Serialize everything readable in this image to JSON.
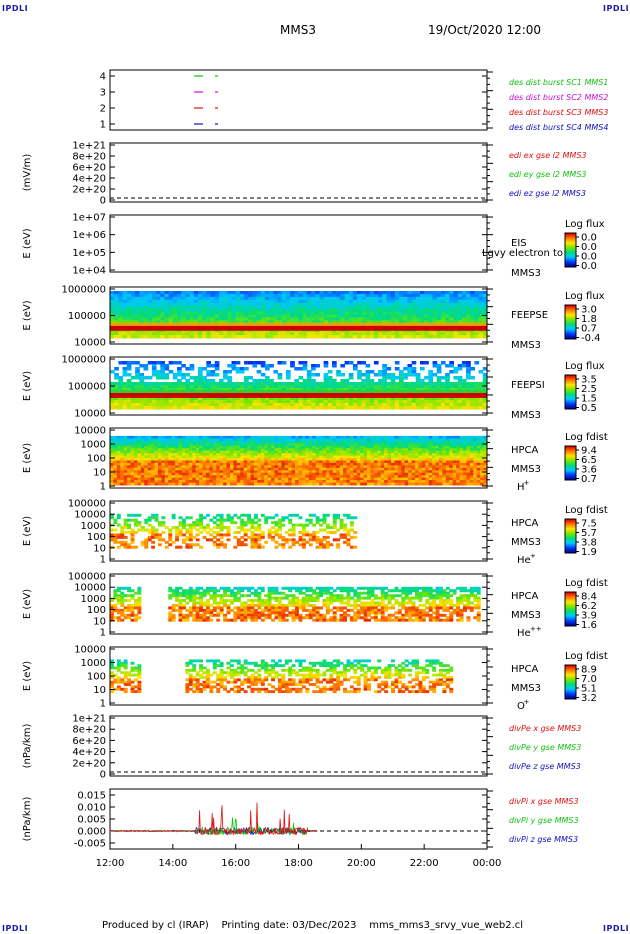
{
  "corners": {
    "tl": "IPDLI",
    "tr": "IPDLI",
    "bl": "IPDLI",
    "br": "IPDLI"
  },
  "header": {
    "spacecraft": "MMS3",
    "datetime": "19/Oct/2020 12:00"
  },
  "footer": {
    "text": "Produced by cl (IRAP)    Printing date: 03/Dec/2023    mms_mms3_srvy_vue_web2.cl"
  },
  "colors": {
    "red": "#e01010",
    "green": "#10c010",
    "blue": "#1010c0",
    "magenta": "#d010d0"
  },
  "chart_data": [
    {
      "id": "burst",
      "type": "line",
      "ylabel": "",
      "ticks": [
        "1",
        "2",
        "3",
        "4"
      ],
      "x_ticks": [
        "12:00",
        "14:00",
        "16:00",
        "18:00",
        "20:00",
        "22:00",
        "00:00"
      ],
      "series": [
        {
          "name": "des dist burst SC1 MMS1",
          "color": "#10c010",
          "level": 4,
          "x": [
            "14:45",
            "15:10"
          ]
        },
        {
          "name": "des dist burst SC2 MMS2",
          "color": "#d010d0",
          "level": 3,
          "x": [
            "14:45",
            "15:10"
          ]
        },
        {
          "name": "des dist burst SC3 MMS3",
          "color": "#e01010",
          "level": 2,
          "x": [
            "14:45",
            "15:10"
          ]
        },
        {
          "name": "des dist burst SC4 MMS4",
          "color": "#1010c0",
          "level": 1,
          "x": [
            "14:45",
            "15:10"
          ]
        }
      ]
    },
    {
      "id": "edi",
      "type": "line",
      "ylabel": "(mV/m)",
      "ticks": [
        "1e+21",
        "8e+20",
        "6e+20",
        "4e+20",
        "2e+20",
        "0"
      ],
      "series": [
        {
          "name": "edi ex gse l2 MMS3",
          "color": "#e01010"
        },
        {
          "name": "edi ey gse l2 MMS3",
          "color": "#10c010"
        },
        {
          "name": "edi ez gse l2 MMS3",
          "color": "#1010c0"
        }
      ]
    },
    {
      "id": "eis",
      "type": "heatmap",
      "ylabel": "E (eV)",
      "ticks": [
        "1e+07",
        "1e+06",
        "1e+05",
        "1e+04"
      ],
      "instrument": "EIS",
      "overlay": "Lgvy electron to",
      "sc": "MMS3",
      "cbar_title": "Log flux",
      "cbar_ticks": [
        "0.0",
        "0.0",
        "0.0",
        "0.0"
      ]
    },
    {
      "id": "feepse",
      "type": "heatmap",
      "ylabel": "E (eV)",
      "ticks": [
        "1000000",
        "100000",
        "10000"
      ],
      "instrument": "FEEPSE",
      "sc": "MMS3",
      "cbar_title": "Log flux",
      "cbar_ticks": [
        "3.0",
        "1.8",
        "0.7",
        "-0.4"
      ]
    },
    {
      "id": "feepsi",
      "type": "heatmap",
      "ylabel": "E (eV)",
      "ticks": [
        "1000000",
        "100000",
        "10000"
      ],
      "instrument": "FEEPSI",
      "sc": "MMS3",
      "cbar_title": "Log flux",
      "cbar_ticks": [
        "3.5",
        "2.5",
        "1.5",
        "0.5"
      ]
    },
    {
      "id": "hpca_h",
      "type": "heatmap",
      "ylabel": "E (eV)",
      "ticks": [
        "10000",
        "1000",
        "100",
        "10",
        "1"
      ],
      "instrument": "HPCA",
      "sc": "MMS3",
      "species": "H",
      "charge": "+",
      "cbar_title": "Log fdist",
      "cbar_ticks": [
        "9.4",
        "6.5",
        "3.6",
        "0.7"
      ]
    },
    {
      "id": "hpca_he1",
      "type": "heatmap",
      "ylabel": "E (eV)",
      "ticks": [
        "100000",
        "10000",
        "1000",
        "100",
        "10",
        "1"
      ],
      "instrument": "HPCA",
      "sc": "MMS3",
      "species": "He",
      "charge": "+",
      "cbar_title": "Log fdist",
      "cbar_ticks": [
        "7.5",
        "5.7",
        "3.8",
        "1.9"
      ]
    },
    {
      "id": "hpca_he2",
      "type": "heatmap",
      "ylabel": "E (eV)",
      "ticks": [
        "100000",
        "10000",
        "1000",
        "100",
        "10",
        "1"
      ],
      "instrument": "HPCA",
      "sc": "MMS3",
      "species": "He",
      "charge": "++",
      "cbar_title": "Log fdist",
      "cbar_ticks": [
        "8.4",
        "6.2",
        "3.9",
        "1.6"
      ]
    },
    {
      "id": "hpca_o",
      "type": "heatmap",
      "ylabel": "E (eV)",
      "ticks": [
        "10000",
        "1000",
        "100",
        "10",
        "1"
      ],
      "instrument": "HPCA",
      "sc": "MMS3",
      "species": "O",
      "charge": "+",
      "cbar_title": "Log fdist",
      "cbar_ticks": [
        "8.9",
        "7.0",
        "5.1",
        "3.2"
      ]
    },
    {
      "id": "divpe",
      "type": "line",
      "ylabel": "(nPa/km)",
      "ticks": [
        "1e+21",
        "8e+20",
        "6e+20",
        "4e+20",
        "2e+20",
        "0"
      ],
      "series": [
        {
          "name": "divPe x gse MMS3",
          "color": "#e01010"
        },
        {
          "name": "divPe y gse MMS3",
          "color": "#10c010"
        },
        {
          "name": "divPe z gse MMS3",
          "color": "#1010c0"
        }
      ]
    },
    {
      "id": "divpi",
      "type": "line",
      "ylabel": "(nPa/km)",
      "ticks": [
        "0.015",
        "0.010",
        "0.005",
        "0.000",
        "-0.005"
      ],
      "ylim": [
        -0.0075,
        0.0175
      ],
      "series": [
        {
          "name": "divPi x gse MMS3",
          "color": "#e01010"
        },
        {
          "name": "divPi y gse MMS3",
          "color": "#10c010"
        },
        {
          "name": "divPi z gse MMS3",
          "color": "#1010c0"
        }
      ]
    }
  ]
}
